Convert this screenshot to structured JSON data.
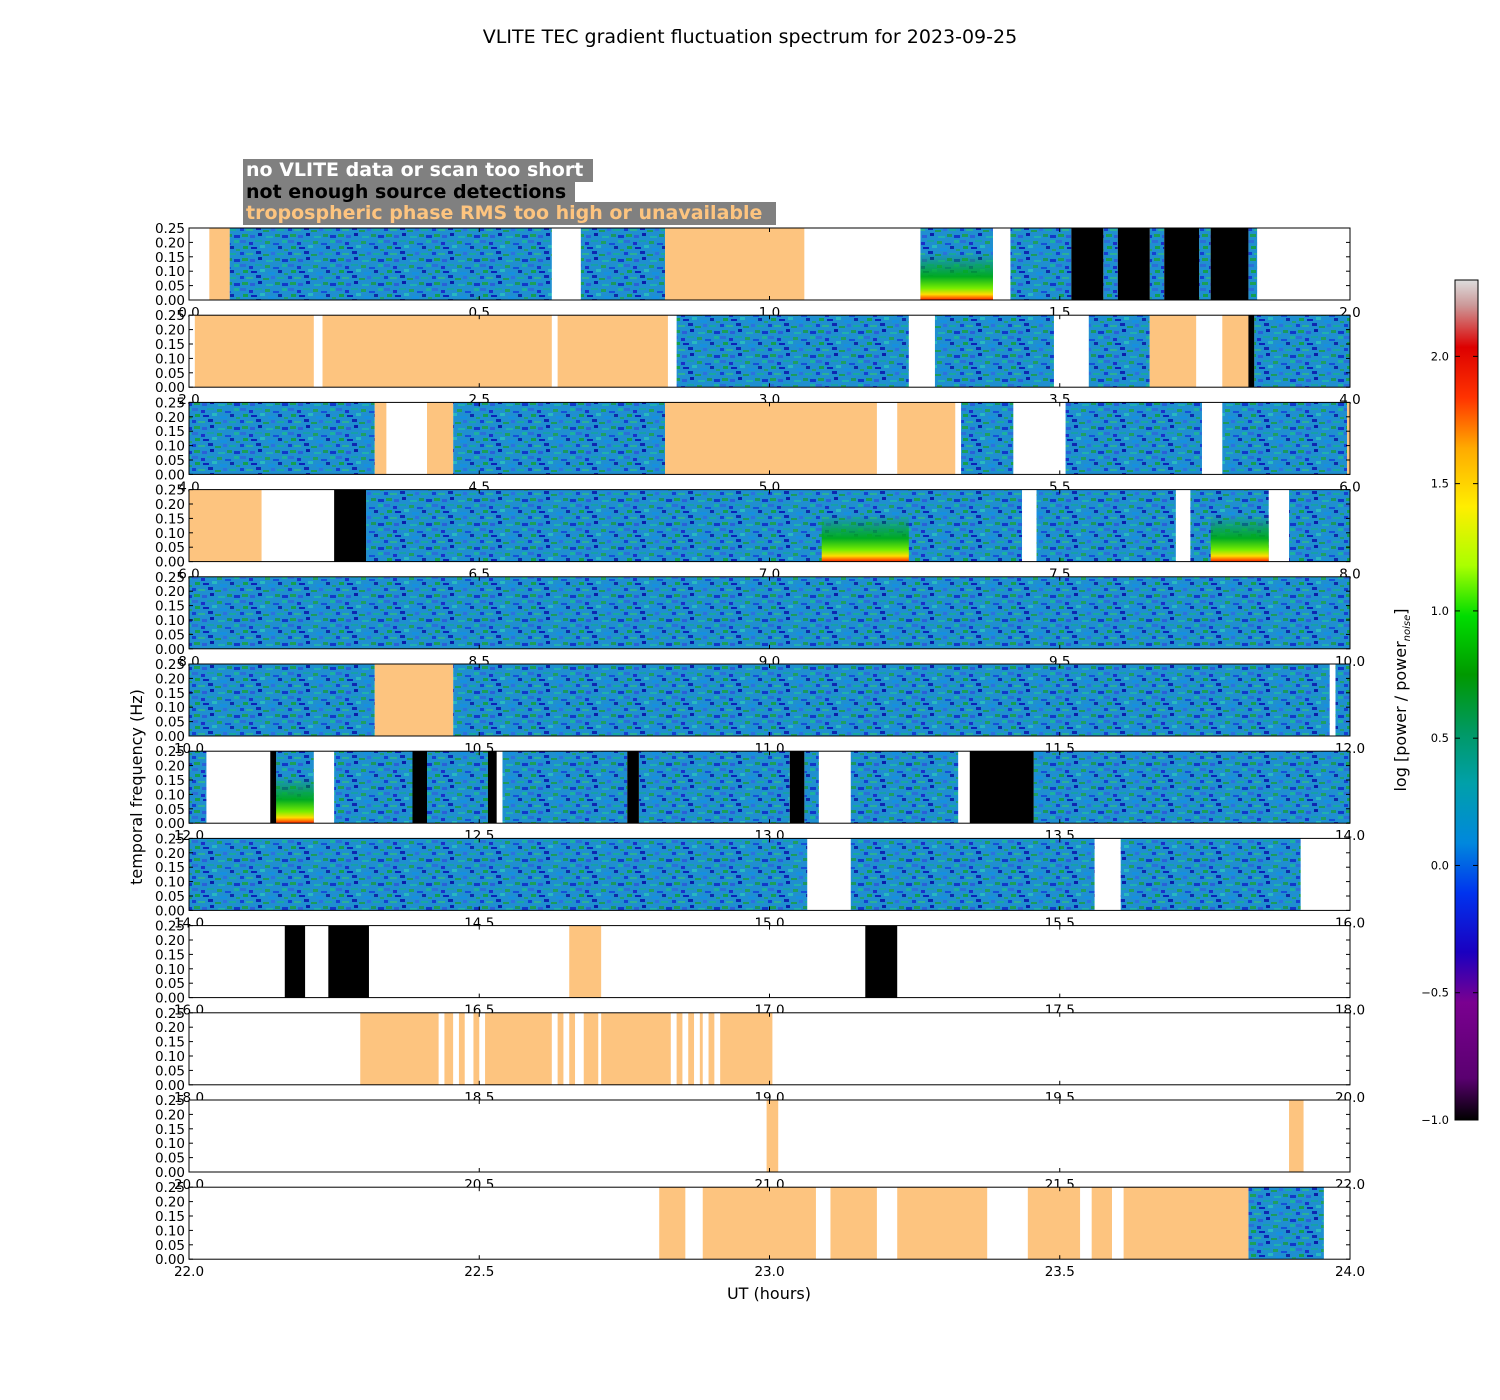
{
  "chart_data": {
    "type": "heatmap",
    "title": "VLITE TEC gradient fluctuation spectrum for 2023-09-25",
    "xlabel": "UT (hours)",
    "ylabel": "temporal frequency (Hz)",
    "colorbar_label": "log [power / power",
    "colorbar_label_sub": "noise",
    "colorbar_label_end": "]",
    "colorbar_range": [
      -1.0,
      2.3
    ],
    "colorbar_ticks": [
      "2.0",
      "1.5",
      "1.0",
      "0.5",
      "0.0",
      "−0.5",
      "−1.0"
    ],
    "colorbar_tick_values": [
      2.0,
      1.5,
      1.0,
      0.5,
      0.0,
      -0.5,
      -1.0
    ],
    "ylim": [
      0,
      0.25
    ],
    "yticks": [
      "0.25",
      "0.20",
      "0.15",
      "0.10",
      "0.05",
      "0.00"
    ],
    "ytick_values": [
      0.25,
      0.2,
      0.15,
      0.1,
      0.05,
      0.0
    ],
    "legend": [
      {
        "label": "no VLITE data or scan too short",
        "text_color": "#ffffff",
        "meaning": "no_data"
      },
      {
        "label": "not enough source detections",
        "text_color": "#000000",
        "meaning": "few_detections"
      },
      {
        "label": "tropospheric phase RMS too high or unavailable",
        "text_color": "#fdc47f",
        "meaning": "tropo"
      }
    ],
    "legend_background": "#808080",
    "flag_colors": {
      "tropo": "#fdc47f",
      "black": "#000000"
    },
    "rows": [
      {
        "xlim": [
          0,
          2
        ],
        "xticks": [
          "0.0",
          "0.5",
          "1.0",
          "1.5",
          "2.0"
        ],
        "tropo": [
          [
            0.035,
            0.07
          ],
          [
            0.82,
            1.06
          ]
        ],
        "black": [
          [
            1.52,
            1.575
          ],
          [
            1.6,
            1.655
          ],
          [
            1.68,
            1.74
          ],
          [
            1.76,
            1.825
          ]
        ],
        "spectrum": [
          [
            0.07,
            0.625
          ],
          [
            0.675,
            0.82
          ],
          [
            1.26,
            1.385
          ],
          [
            1.415,
            1.52
          ],
          [
            1.575,
            1.6
          ],
          [
            1.655,
            1.68
          ],
          [
            1.74,
            1.76
          ],
          [
            1.825,
            1.84
          ]
        ],
        "hot": [
          [
            1.26,
            1.385
          ]
        ]
      },
      {
        "xlim": [
          2,
          4
        ],
        "xticks": [
          "2.0",
          "2.5",
          "3.0",
          "3.5",
          "4.0"
        ],
        "tropo": [
          [
            2.01,
            2.215
          ],
          [
            2.23,
            2.625
          ],
          [
            2.635,
            2.825
          ],
          [
            3.655,
            3.735
          ],
          [
            3.78,
            3.825
          ]
        ],
        "black": [
          [
            3.825,
            3.835
          ]
        ],
        "spectrum": [
          [
            2.84,
            3.24
          ],
          [
            3.285,
            3.49
          ],
          [
            3.55,
            3.655
          ],
          [
            3.835,
            4.0
          ]
        ],
        "hot": []
      },
      {
        "xlim": [
          4,
          6
        ],
        "xticks": [
          "4.0",
          "4.5",
          "5.0",
          "5.5",
          "6.0"
        ],
        "tropo": [
          [
            4.32,
            4.34
          ],
          [
            4.41,
            4.455
          ],
          [
            4.82,
            5.185
          ],
          [
            5.22,
            5.32
          ],
          [
            5.995,
            6.0
          ]
        ],
        "black": [],
        "spectrum": [
          [
            4.0,
            4.32
          ],
          [
            4.455,
            4.82
          ],
          [
            5.33,
            5.42
          ],
          [
            5.51,
            5.745
          ],
          [
            5.78,
            5.995
          ]
        ],
        "hot": []
      },
      {
        "xlim": [
          6,
          8
        ],
        "xticks": [
          "6.0",
          "6.5",
          "7.0",
          "7.5",
          "8.0"
        ],
        "tropo": [
          [
            6.0,
            6.125
          ]
        ],
        "black": [
          [
            6.25,
            6.305
          ]
        ],
        "spectrum": [
          [
            6.305,
            7.435
          ],
          [
            7.46,
            7.7
          ],
          [
            7.725,
            7.86
          ],
          [
            7.895,
            8.0
          ]
        ],
        "hot": [
          [
            7.09,
            7.24
          ],
          [
            7.76,
            7.86
          ]
        ]
      },
      {
        "xlim": [
          8,
          10
        ],
        "xticks": [
          "8.0",
          "8.5",
          "9.0",
          "9.5",
          "10.0"
        ],
        "tropo": [],
        "black": [],
        "spectrum": [
          [
            8.0,
            10.0
          ]
        ],
        "hot": []
      },
      {
        "xlim": [
          10,
          12
        ],
        "xticks": [
          "10.0",
          "10.5",
          "11.0",
          "11.5",
          "12.0"
        ],
        "tropo": [
          [
            10.32,
            10.455
          ]
        ],
        "black": [],
        "spectrum": [
          [
            10.0,
            10.32
          ],
          [
            10.455,
            11.965
          ],
          [
            11.975,
            12.0
          ]
        ],
        "hot": []
      },
      {
        "xlim": [
          12,
          14
        ],
        "xticks": [
          "12.0",
          "12.5",
          "13.0",
          "13.5",
          "14.0"
        ],
        "tropo": [],
        "black": [
          [
            12.14,
            12.15
          ],
          [
            12.385,
            12.41
          ],
          [
            12.515,
            12.53
          ],
          [
            12.755,
            12.775
          ],
          [
            13.035,
            13.06
          ],
          [
            13.345,
            13.455
          ]
        ],
        "spectrum": [
          [
            12.0,
            12.03
          ],
          [
            12.15,
            12.215
          ],
          [
            12.25,
            12.385
          ],
          [
            12.41,
            12.515
          ],
          [
            12.54,
            12.755
          ],
          [
            12.775,
            13.035
          ],
          [
            13.06,
            13.085
          ],
          [
            13.14,
            13.325
          ],
          [
            13.455,
            14.0
          ]
        ],
        "hot": [
          [
            12.15,
            12.215
          ]
        ]
      },
      {
        "xlim": [
          14,
          16
        ],
        "xticks": [
          "14.0",
          "14.5",
          "15.0",
          "15.5",
          "16.0"
        ],
        "tropo": [],
        "black": [],
        "spectrum": [
          [
            14.0,
            15.065
          ],
          [
            15.14,
            15.56
          ],
          [
            15.605,
            15.915
          ]
        ],
        "hot": []
      },
      {
        "xlim": [
          16,
          18
        ],
        "xticks": [
          "16.0",
          "16.5",
          "17.0",
          "17.5",
          "18.0"
        ],
        "tropo": [
          [
            16.655,
            16.71
          ]
        ],
        "black": [
          [
            16.165,
            16.2
          ],
          [
            16.24,
            16.31
          ],
          [
            17.165,
            17.22
          ]
        ],
        "spectrum": [],
        "hot": []
      },
      {
        "xlim": [
          18,
          20
        ],
        "xticks": [
          "18.0",
          "18.5",
          "19.0",
          "19.5",
          "20.0"
        ],
        "tropo": [
          [
            18.295,
            18.43
          ],
          [
            18.44,
            18.455
          ],
          [
            18.465,
            18.475
          ],
          [
            18.49,
            18.5
          ],
          [
            18.51,
            18.625
          ],
          [
            18.635,
            18.645
          ],
          [
            18.655,
            18.665
          ],
          [
            18.68,
            18.705
          ],
          [
            18.71,
            18.83
          ],
          [
            18.84,
            18.85
          ],
          [
            18.86,
            18.87
          ],
          [
            18.88,
            18.885
          ],
          [
            18.895,
            18.905
          ],
          [
            18.915,
            19.005
          ]
        ],
        "black": [],
        "spectrum": [],
        "hot": []
      },
      {
        "xlim": [
          20,
          22
        ],
        "xticks": [
          "20.0",
          "20.5",
          "21.0",
          "21.5",
          "22.0"
        ],
        "tropo": [
          [
            20.995,
            21.015
          ],
          [
            21.895,
            21.92
          ]
        ],
        "black": [],
        "spectrum": [],
        "hot": []
      },
      {
        "xlim": [
          22,
          24
        ],
        "xticks": [
          "22.0",
          "22.5",
          "23.0",
          "23.5",
          "24.0"
        ],
        "tropo": [
          [
            22.81,
            22.855
          ],
          [
            22.885,
            23.08
          ],
          [
            23.105,
            23.185
          ],
          [
            23.22,
            23.375
          ],
          [
            23.445,
            23.535
          ],
          [
            23.555,
            23.59
          ],
          [
            23.61,
            23.825
          ]
        ],
        "black": [],
        "spectrum": [
          [
            23.825,
            23.955
          ]
        ],
        "hot": []
      }
    ]
  }
}
